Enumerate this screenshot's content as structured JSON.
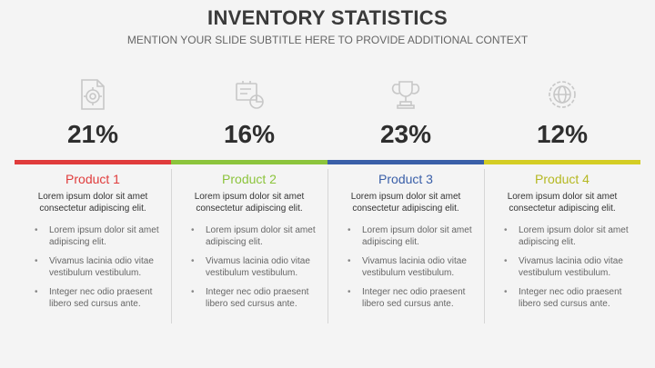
{
  "title": "INVENTORY STATISTICS",
  "subtitle": "MENTION YOUR SLIDE SUBTITLE HERE TO PROVIDE ADDITIONAL CONTEXT",
  "products": [
    {
      "icon": "document-target-icon",
      "percent": "21%",
      "name": "Product 1",
      "color": "#e03c3c",
      "description": "Lorem ipsum dolor sit amet consectetur adipiscing elit.",
      "bullets": [
        "Lorem ipsum dolor sit amet adipiscing elit.",
        "Vivamus lacinia odio vitae vestibulum vestibulum.",
        "Integer nec odio praesent libero sed cursus ante."
      ]
    },
    {
      "icon": "chart-board-icon",
      "percent": "16%",
      "name": "Product 2",
      "color": "#8cc43c",
      "description": "Lorem ipsum dolor sit amet consectetur adipiscing elit.",
      "bullets": [
        "Lorem ipsum dolor sit amet adipiscing elit.",
        "Vivamus lacinia odio vitae vestibulum vestibulum.",
        "Integer nec odio praesent libero sed cursus ante."
      ]
    },
    {
      "icon": "trophy-icon",
      "percent": "23%",
      "name": "Product 3",
      "color": "#3a5fa8",
      "description": "Lorem ipsum dolor sit amet consectetur adipiscing elit.",
      "bullets": [
        "Lorem ipsum dolor sit amet adipiscing elit.",
        "Vivamus lacinia odio vitae vestibulum vestibulum.",
        "Integer nec odio praesent libero sed cursus ante."
      ]
    },
    {
      "icon": "globe-gear-icon",
      "percent": "12%",
      "name": "Product 4",
      "color": "#b5b822",
      "description": "Lorem ipsum dolor sit amet consectetur adipiscing elit.",
      "bullets": [
        "Lorem ipsum dolor sit amet adipiscing elit.",
        "Vivamus lacinia odio vitae vestibulum vestibulum.",
        "Integer nec odio praesent libero sed cursus ante."
      ]
    }
  ],
  "colors": {
    "bar4": "#d4cd24",
    "icon": "#c7c7c7"
  }
}
